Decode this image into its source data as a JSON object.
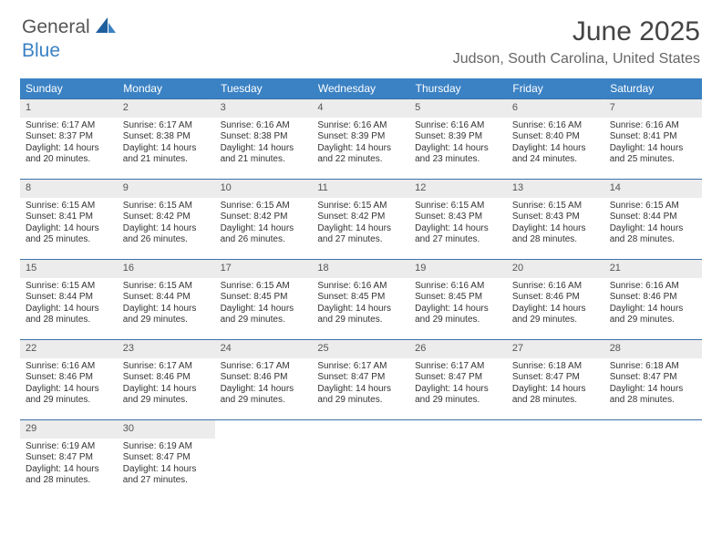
{
  "logo": {
    "text1": "General",
    "text2": "Blue"
  },
  "title": "June 2025",
  "location": "Judson, South Carolina, United States",
  "colors": {
    "header_bg": "#3b82c4",
    "daynum_bg": "#ececec",
    "border": "#3b72a8",
    "text": "#333333",
    "title_text": "#444444",
    "location_text": "#666666"
  },
  "weekdays": [
    "Sunday",
    "Monday",
    "Tuesday",
    "Wednesday",
    "Thursday",
    "Friday",
    "Saturday"
  ],
  "days": [
    {
      "n": "1",
      "sr": "6:17 AM",
      "ss": "8:37 PM",
      "dl": "14 hours and 20 minutes."
    },
    {
      "n": "2",
      "sr": "6:17 AM",
      "ss": "8:38 PM",
      "dl": "14 hours and 21 minutes."
    },
    {
      "n": "3",
      "sr": "6:16 AM",
      "ss": "8:38 PM",
      "dl": "14 hours and 21 minutes."
    },
    {
      "n": "4",
      "sr": "6:16 AM",
      "ss": "8:39 PM",
      "dl": "14 hours and 22 minutes."
    },
    {
      "n": "5",
      "sr": "6:16 AM",
      "ss": "8:39 PM",
      "dl": "14 hours and 23 minutes."
    },
    {
      "n": "6",
      "sr": "6:16 AM",
      "ss": "8:40 PM",
      "dl": "14 hours and 24 minutes."
    },
    {
      "n": "7",
      "sr": "6:16 AM",
      "ss": "8:41 PM",
      "dl": "14 hours and 25 minutes."
    },
    {
      "n": "8",
      "sr": "6:15 AM",
      "ss": "8:41 PM",
      "dl": "14 hours and 25 minutes."
    },
    {
      "n": "9",
      "sr": "6:15 AM",
      "ss": "8:42 PM",
      "dl": "14 hours and 26 minutes."
    },
    {
      "n": "10",
      "sr": "6:15 AM",
      "ss": "8:42 PM",
      "dl": "14 hours and 26 minutes."
    },
    {
      "n": "11",
      "sr": "6:15 AM",
      "ss": "8:42 PM",
      "dl": "14 hours and 27 minutes."
    },
    {
      "n": "12",
      "sr": "6:15 AM",
      "ss": "8:43 PM",
      "dl": "14 hours and 27 minutes."
    },
    {
      "n": "13",
      "sr": "6:15 AM",
      "ss": "8:43 PM",
      "dl": "14 hours and 28 minutes."
    },
    {
      "n": "14",
      "sr": "6:15 AM",
      "ss": "8:44 PM",
      "dl": "14 hours and 28 minutes."
    },
    {
      "n": "15",
      "sr": "6:15 AM",
      "ss": "8:44 PM",
      "dl": "14 hours and 28 minutes."
    },
    {
      "n": "16",
      "sr": "6:15 AM",
      "ss": "8:44 PM",
      "dl": "14 hours and 29 minutes."
    },
    {
      "n": "17",
      "sr": "6:15 AM",
      "ss": "8:45 PM",
      "dl": "14 hours and 29 minutes."
    },
    {
      "n": "18",
      "sr": "6:16 AM",
      "ss": "8:45 PM",
      "dl": "14 hours and 29 minutes."
    },
    {
      "n": "19",
      "sr": "6:16 AM",
      "ss": "8:45 PM",
      "dl": "14 hours and 29 minutes."
    },
    {
      "n": "20",
      "sr": "6:16 AM",
      "ss": "8:46 PM",
      "dl": "14 hours and 29 minutes."
    },
    {
      "n": "21",
      "sr": "6:16 AM",
      "ss": "8:46 PM",
      "dl": "14 hours and 29 minutes."
    },
    {
      "n": "22",
      "sr": "6:16 AM",
      "ss": "8:46 PM",
      "dl": "14 hours and 29 minutes."
    },
    {
      "n": "23",
      "sr": "6:17 AM",
      "ss": "8:46 PM",
      "dl": "14 hours and 29 minutes."
    },
    {
      "n": "24",
      "sr": "6:17 AM",
      "ss": "8:46 PM",
      "dl": "14 hours and 29 minutes."
    },
    {
      "n": "25",
      "sr": "6:17 AM",
      "ss": "8:47 PM",
      "dl": "14 hours and 29 minutes."
    },
    {
      "n": "26",
      "sr": "6:17 AM",
      "ss": "8:47 PM",
      "dl": "14 hours and 29 minutes."
    },
    {
      "n": "27",
      "sr": "6:18 AM",
      "ss": "8:47 PM",
      "dl": "14 hours and 28 minutes."
    },
    {
      "n": "28",
      "sr": "6:18 AM",
      "ss": "8:47 PM",
      "dl": "14 hours and 28 minutes."
    },
    {
      "n": "29",
      "sr": "6:19 AM",
      "ss": "8:47 PM",
      "dl": "14 hours and 28 minutes."
    },
    {
      "n": "30",
      "sr": "6:19 AM",
      "ss": "8:47 PM",
      "dl": "14 hours and 27 minutes."
    }
  ],
  "labels": {
    "sunrise": "Sunrise:",
    "sunset": "Sunset:",
    "daylight": "Daylight:"
  }
}
